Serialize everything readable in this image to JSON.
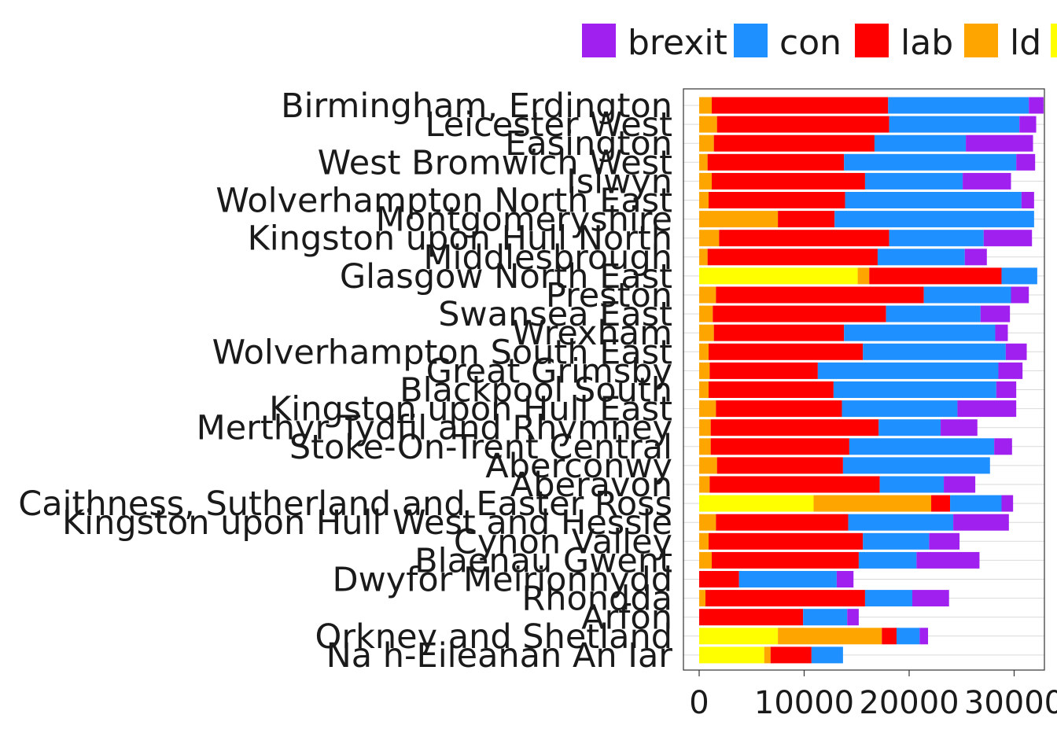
{
  "chart_data": {
    "type": "bar",
    "orientation": "horizontal",
    "stacked": true,
    "grid": true,
    "legend_position": "top",
    "xlim": [
      0,
      35000
    ],
    "x_ticks": [
      0,
      10000,
      20000,
      30000
    ],
    "x_tick_labels": [
      "0",
      "10000",
      "20000",
      "30000"
    ],
    "stack_order": [
      "yellow",
      "ld",
      "lab",
      "con",
      "brexit"
    ],
    "legend": [
      {
        "key": "brexit",
        "label": "brexit",
        "color": "#A020F0"
      },
      {
        "key": "con",
        "label": "con",
        "color": "#1E90FF"
      },
      {
        "key": "lab",
        "label": "lab",
        "color": "#FF0000"
      },
      {
        "key": "ld",
        "label": "ld",
        "color": "#FFA500"
      },
      {
        "key": "yellow",
        "label": "",
        "color": "#FFFF00"
      }
    ],
    "categories": [
      "Birmingham, Erdington",
      "Leicester West",
      "Easington",
      "West Bromwich West",
      "Islwyn",
      "Wolverhampton North East",
      "Montgomeryshire",
      "Kingston upon Hull North",
      "Middlesbrough",
      "Glasgow North East",
      "Preston",
      "Swansea East",
      "Wrexham",
      "Wolverhampton South East",
      "Great Grimsby",
      "Blackpool South",
      "Kingston upon Hull East",
      "Merthyr Tydfil and Rhymney",
      "Stoke-On-Trent Central",
      "Aberconwy",
      "Aberavon",
      "Caithness, Sutherland and Easter Ross",
      "Kingston upon Hull West and Hessle",
      "Cynon Valley",
      "Blaenau Gwent",
      "Dwyfor Meirionnydd",
      "Rhondda",
      "Arfon",
      "Orkney and Shetland",
      "Na h-Eileanan An Iar"
    ],
    "series": [
      {
        "key": "yellow",
        "values": [
          0,
          0,
          0,
          0,
          0,
          0,
          0,
          0,
          0,
          15100,
          0,
          0,
          0,
          0,
          0,
          0,
          0,
          0,
          0,
          0,
          0,
          10900,
          0,
          0,
          0,
          0,
          0,
          0,
          7500,
          6200
        ]
      },
      {
        "key": "ld",
        "values": [
          1200,
          1700,
          1400,
          800,
          1200,
          900,
          7500,
          1900,
          800,
          1100,
          1600,
          1300,
          1400,
          900,
          1000,
          900,
          1600,
          1100,
          1100,
          1700,
          1000,
          11200,
          1600,
          900,
          1200,
          0,
          600,
          0,
          9900,
          600
        ]
      },
      {
        "key": "lab",
        "values": [
          16800,
          16400,
          15300,
          13000,
          14600,
          13000,
          5400,
          16200,
          16200,
          12600,
          19800,
          16500,
          12400,
          14700,
          10300,
          11900,
          12000,
          16000,
          13200,
          12000,
          16200,
          1800,
          12600,
          14700,
          14000,
          3800,
          15200,
          9900,
          1400,
          3900
        ]
      },
      {
        "key": "con",
        "values": [
          13400,
          12400,
          8700,
          16400,
          9300,
          16800,
          19000,
          9000,
          8300,
          3400,
          8300,
          9000,
          14400,
          13600,
          17200,
          15500,
          11000,
          5900,
          13800,
          14000,
          6100,
          4900,
          10000,
          6300,
          5500,
          9300,
          4500,
          4200,
          2200,
          3000
        ]
      },
      {
        "key": "brexit",
        "values": [
          1400,
          1600,
          6400,
          1800,
          4600,
          1200,
          0,
          4600,
          2100,
          0,
          1700,
          2800,
          1200,
          2000,
          2300,
          1900,
          5600,
          3500,
          1700,
          0,
          3000,
          1100,
          5300,
          2900,
          6000,
          1600,
          3500,
          1100,
          800,
          0
        ]
      }
    ]
  }
}
